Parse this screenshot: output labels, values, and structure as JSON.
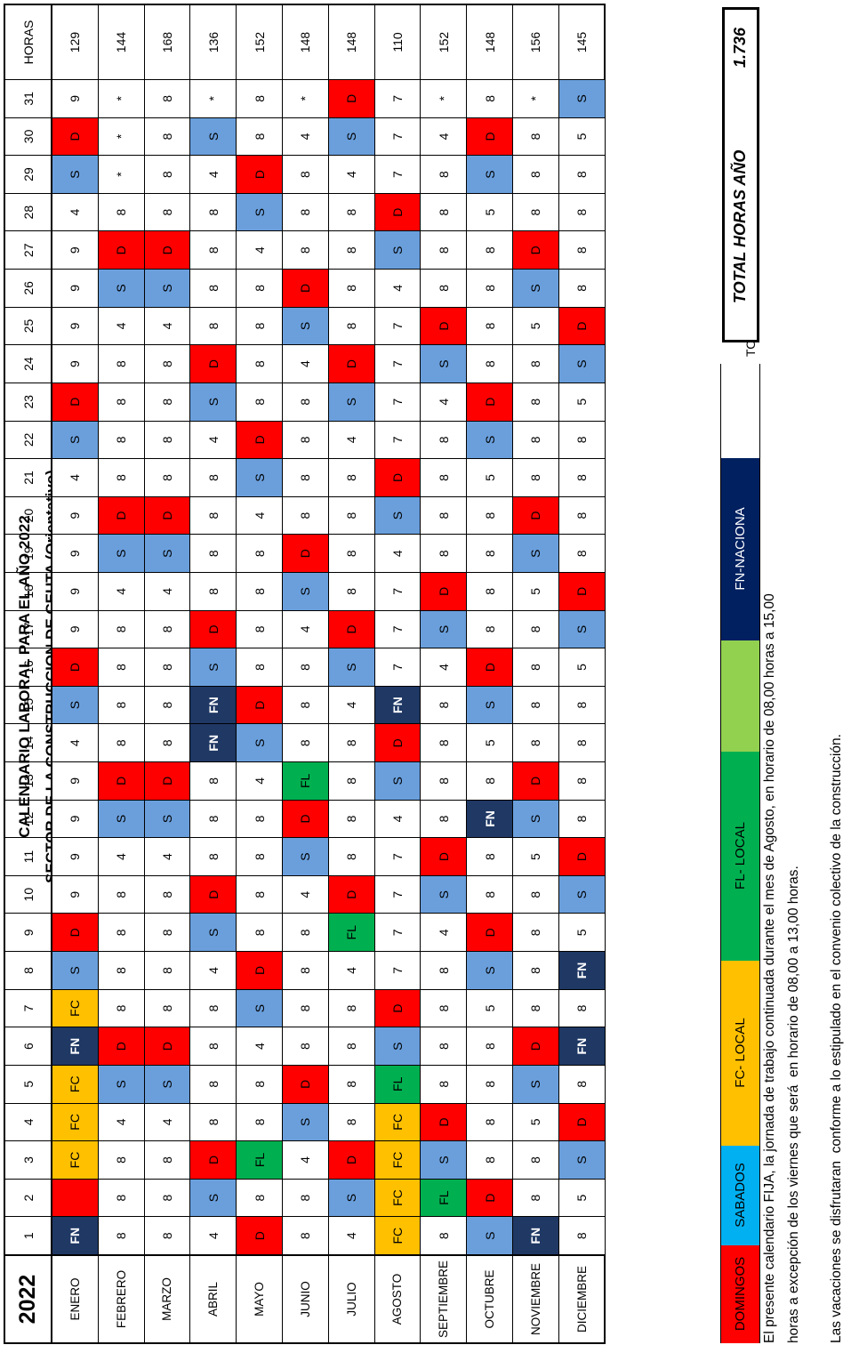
{
  "header": {
    "title": "CALENDARIO LABORAL PARA EL AÑO 2022",
    "subtitle": "SECTOR DE LA CONSTRUCCION DE CEUTA (Orientativo)"
  },
  "codes": {
    "D": "#ff0000",
    "S": "#6a9fdc",
    "FN": "#1f3864",
    "FC": "#ffc000",
    "FL": "#00b050"
  },
  "table": {
    "corner": "2022",
    "total_label": "HORAS",
    "days": [
      1,
      2,
      3,
      4,
      5,
      6,
      7,
      8,
      9,
      10,
      11,
      12,
      13,
      14,
      15,
      16,
      17,
      18,
      19,
      20,
      21,
      22,
      23,
      24,
      25,
      26,
      27,
      28,
      29,
      30,
      31
    ],
    "rows": [
      {
        "month": "ENERO",
        "days": [
          "FN",
          null,
          "FC",
          "FC",
          "FC",
          "FN",
          "FC",
          "S",
          "D",
          9,
          9,
          9,
          9,
          4,
          "S",
          "D",
          9,
          9,
          9,
          9,
          4,
          "S",
          "D",
          9,
          9,
          9,
          9,
          4,
          "S",
          "D",
          9
        ],
        "horas": 129
      },
      {
        "month": "FEBRERO",
        "days": [
          8,
          8,
          8,
          4,
          "S",
          "D",
          8,
          8,
          8,
          8,
          4,
          "S",
          "D",
          8,
          8,
          8,
          8,
          4,
          "S",
          "D",
          8,
          8,
          8,
          8,
          4,
          "S",
          "D",
          8,
          "*",
          "*",
          "*"
        ],
        "horas": 144
      },
      {
        "month": "MARZO",
        "days": [
          8,
          8,
          8,
          4,
          "S",
          "D",
          8,
          8,
          8,
          8,
          4,
          "S",
          "D",
          8,
          8,
          8,
          8,
          4,
          "S",
          "D",
          8,
          8,
          8,
          8,
          4,
          "S",
          "D",
          8,
          8,
          8,
          8
        ],
        "horas": 168
      },
      {
        "month": "ABRIL",
        "days": [
          4,
          "S",
          "D",
          8,
          8,
          8,
          8,
          4,
          "S",
          "D",
          8,
          8,
          8,
          "FN",
          "FN",
          "S",
          "D",
          8,
          8,
          8,
          8,
          4,
          "S",
          "D",
          8,
          8,
          8,
          8,
          4,
          "S",
          "*"
        ],
        "horas": 136
      },
      {
        "month": "MAYO",
        "days": [
          "D",
          8,
          "FL",
          8,
          8,
          4,
          "S",
          "D",
          8,
          8,
          8,
          8,
          4,
          "S",
          "D",
          8,
          8,
          8,
          8,
          4,
          "S",
          "D",
          8,
          8,
          8,
          8,
          4,
          "S",
          "D",
          8,
          8
        ],
        "horas": 152
      },
      {
        "month": "JUNIO",
        "days": [
          8,
          8,
          4,
          "S",
          "D",
          8,
          8,
          8,
          8,
          4,
          "S",
          "D",
          "FL",
          8,
          8,
          8,
          4,
          "S",
          "D",
          8,
          8,
          8,
          8,
          4,
          "S",
          "D",
          8,
          8,
          8,
          4,
          "*"
        ],
        "horas": 148
      },
      {
        "month": "JULIO",
        "days": [
          4,
          "S",
          "D",
          8,
          8,
          8,
          8,
          4,
          "FL",
          "D",
          8,
          8,
          8,
          8,
          4,
          "S",
          "D",
          8,
          8,
          8,
          8,
          4,
          "S",
          "D",
          8,
          8,
          8,
          8,
          4,
          "S",
          "D"
        ],
        "horas": 148
      },
      {
        "month": "AGOSTO",
        "days": [
          "FC",
          "FC",
          "FC",
          "FC",
          "FL",
          "S",
          "D",
          7,
          7,
          7,
          7,
          4,
          "S",
          "D",
          "FN",
          7,
          7,
          7,
          4,
          "S",
          "D",
          7,
          7,
          7,
          7,
          4,
          "S",
          "D",
          7,
          7,
          7
        ],
        "horas": 110
      },
      {
        "month": "SEPTIEMBRE",
        "days": [
          8,
          "FL",
          "S",
          "D",
          8,
          8,
          8,
          8,
          4,
          "S",
          "D",
          8,
          8,
          8,
          8,
          4,
          "S",
          "D",
          8,
          8,
          8,
          8,
          4,
          "S",
          "D",
          8,
          8,
          8,
          8,
          4,
          "*"
        ],
        "horas": 152
      },
      {
        "month": "OCTUBRE",
        "days": [
          "S",
          "D",
          8,
          8,
          8,
          8,
          5,
          "S",
          "D",
          8,
          8,
          "FN",
          8,
          5,
          "S",
          "D",
          8,
          8,
          8,
          8,
          5,
          "S",
          "D",
          8,
          8,
          8,
          8,
          5,
          "S",
          "D",
          8
        ],
        "horas": 148
      },
      {
        "month": "NOVIEMBRE",
        "days": [
          "FN",
          8,
          8,
          5,
          "S",
          "D",
          8,
          8,
          8,
          8,
          5,
          "S",
          "D",
          8,
          8,
          8,
          8,
          5,
          "S",
          "D",
          8,
          8,
          8,
          8,
          5,
          "S",
          "D",
          8,
          8,
          8,
          "*"
        ],
        "horas": 156
      },
      {
        "month": "DICIEMBRE",
        "days": [
          8,
          5,
          "S",
          "D",
          8,
          "FN",
          8,
          "FN",
          5,
          "S",
          "D",
          8,
          8,
          8,
          8,
          5,
          "S",
          "D",
          8,
          8,
          8,
          8,
          5,
          "S",
          "D",
          8,
          8,
          8,
          8,
          5,
          "S"
        ],
        "horas": 145
      }
    ]
  },
  "legend": [
    {
      "label": "DOMINGOS",
      "color": "#ff0000"
    },
    {
      "label": "SABADOS",
      "color": "#00b0f0"
    },
    {
      "label": "FC- LOCAL",
      "color": "#ffc000"
    },
    {
      "label": "FL- LOCAL",
      "color": "#00b050"
    },
    {
      "color": "#92d050"
    },
    {
      "label": "FN-NACIONA",
      "color": "#002060"
    },
    {
      "color": "#ffffff"
    }
  ],
  "total": {
    "cut": "TO",
    "label": "TOTAL HORAS AÑO",
    "value": "1.736"
  },
  "notes": [
    "El presente calendario FIJA, la jornada de trabajo continuada durante el mes de Agosto, en horario de 08,00 horas a 15,00",
    "horas a excepción de los viernes que será  en horario de 08,00 a 13,00 horas.",
    "Las vacaciones se disfrutaran  conforme a lo estipulado en el convenio colectivo de la construcción."
  ]
}
